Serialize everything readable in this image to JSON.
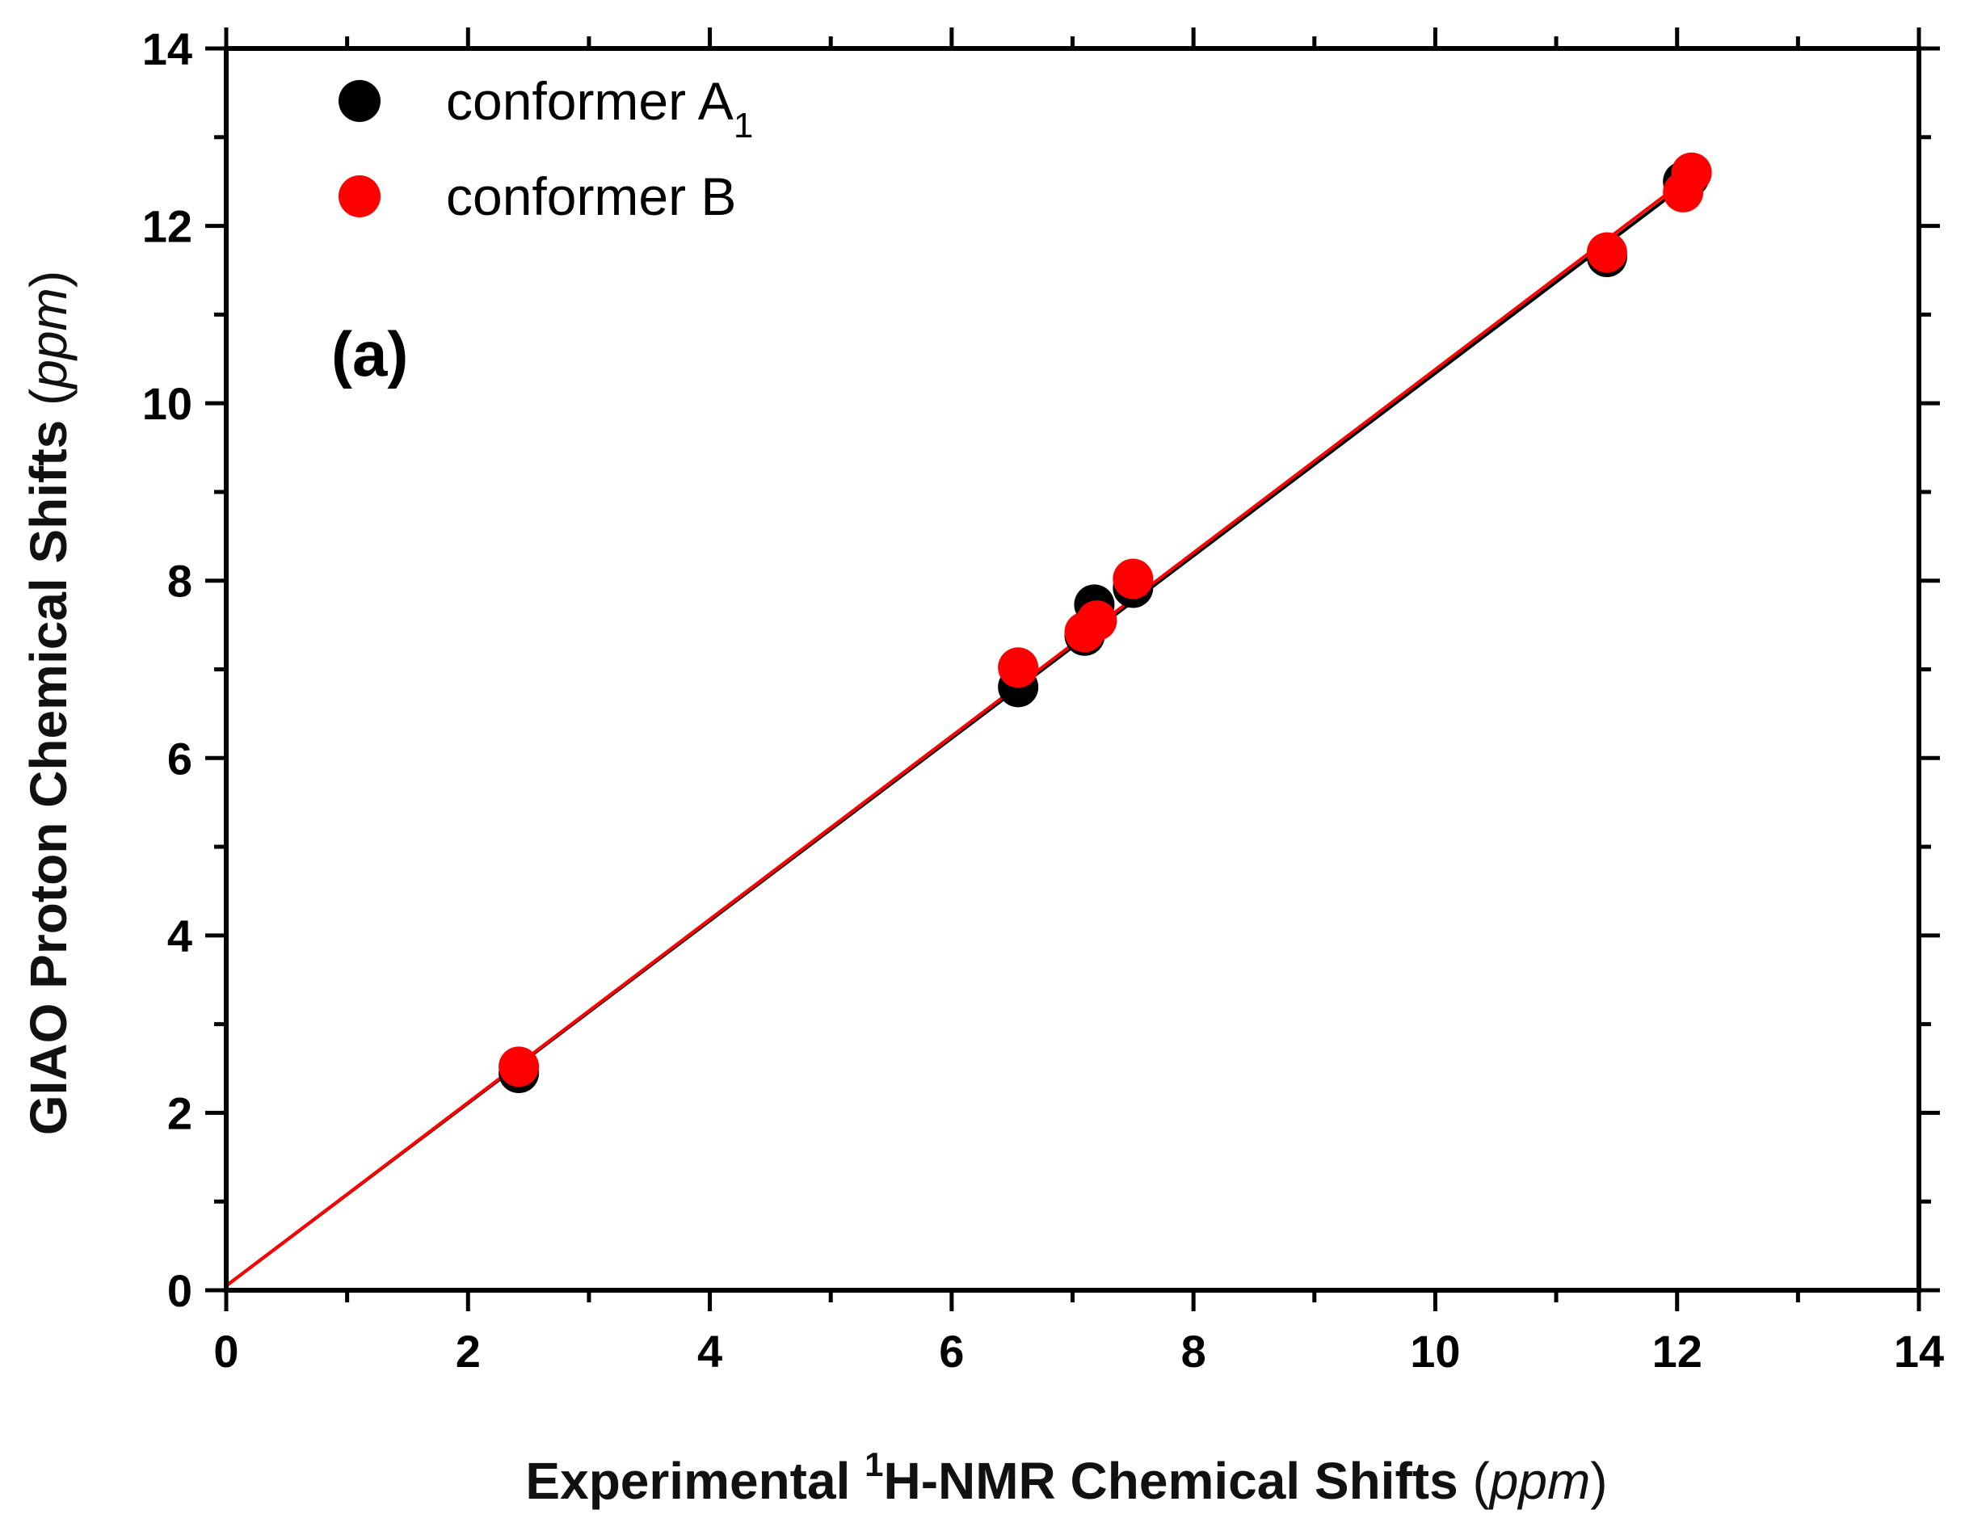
{
  "chart_data": {
    "type": "scatter",
    "title": "",
    "annotation": "(a)",
    "xlabel": {
      "prefix": "Experimental ",
      "superscript": "1",
      "main": "H-NMR Chemical Shifts ",
      "unit_open": "(",
      "unit": "ppm",
      "unit_close": ")"
    },
    "ylabel": {
      "main": "GIAO Proton Chemical Shifts ",
      "unit_open": "(",
      "unit": "ppm",
      "unit_close": ")"
    },
    "xlim": [
      0,
      14
    ],
    "ylim": [
      0,
      14
    ],
    "xticks": [
      0,
      2,
      4,
      6,
      8,
      10,
      12,
      14
    ],
    "yticks": [
      0,
      2,
      4,
      6,
      8,
      10,
      12,
      14
    ],
    "minor_tick_step": 1,
    "grid": false,
    "legend_position": "top-left",
    "series": [
      {
        "name": "conformer A",
        "name_subscript": "1",
        "color": "#000000",
        "x": [
          2.42,
          6.55,
          7.1,
          7.18,
          7.5,
          11.42,
          12.05,
          12.1
        ],
        "y": [
          2.45,
          6.8,
          7.38,
          7.73,
          7.92,
          11.65,
          12.5,
          12.55
        ],
        "fit": {
          "x": [
            0,
            12.1
          ],
          "y": [
            0.05,
            12.5
          ]
        }
      },
      {
        "name": "conformer B",
        "name_subscript": "",
        "color": "#ff0000",
        "x": [
          2.42,
          6.55,
          7.1,
          7.2,
          7.5,
          11.42,
          12.05,
          12.12
        ],
        "y": [
          2.52,
          7.02,
          7.42,
          7.55,
          8.02,
          11.7,
          12.38,
          12.6
        ],
        "fit": {
          "x": [
            0,
            12.1
          ],
          "y": [
            0.05,
            12.55
          ]
        }
      }
    ]
  }
}
